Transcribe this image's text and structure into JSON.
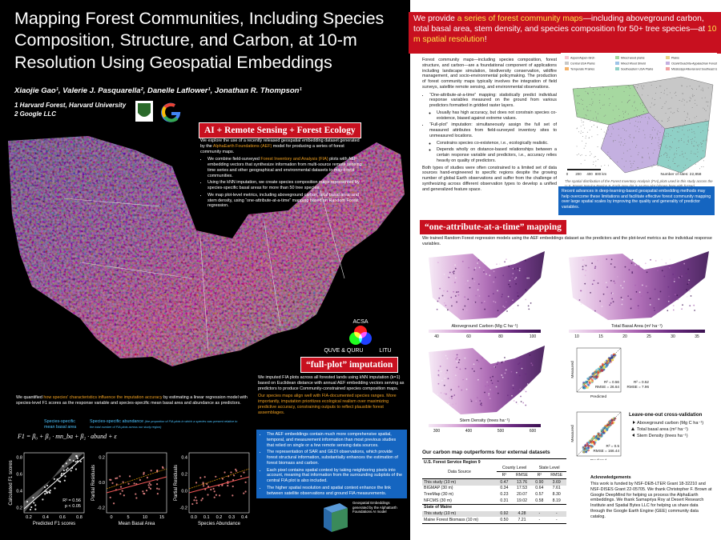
{
  "left": {
    "title": "Mapping Forest Communities, Including Species Composition, Structure, and Carbon, at 10-m Resolution Using Geospatial Embeddings",
    "authors": "Xiaojie Gao¹, Valerie J. Pasquarella², Danelle Laflower¹, Jonathan R. Thompson¹",
    "affiliations": [
      "1 Harvard Forest, Harvard University",
      "2 Google LLC"
    ],
    "ai": {
      "heading": "AI + Remote Sensing + Forest Ecology",
      "intro": [
        "We explore the use of a recently released geospatial embedding dataset generated by the ",
        "AlphaEarth Foundations (AEF)",
        " model for producing a series of forest community maps."
      ],
      "bullets": [
        [
          "We combine field-surveyed ",
          "Forest Inventory and Analysis (FIA)",
          " plots with AEF embedding vectors that synthesize information from multi-source remote sensing time series and other geographical and environmental datasets to map forest communities."
        ],
        [
          "Using the kNN imputation, we create species composition maps represented by species-specific basal areas for more than 50 tree species."
        ],
        [
          "We map plot-level metrics, including aboveground carbon, total basal area, and stem density, using “one-attribute-at-a-time” mapping based on Random Forest regression."
        ]
      ]
    },
    "rgb": [
      "ACSA",
      "QUVE & QURU",
      "LITU"
    ],
    "fullplot": {
      "heading": "“full-plot” imputation",
      "p1": "We imputed FIA plots across all forested lands using kNN imputation (k=1) based on Euclidean distance with annual AEF embedding vectors serving as predictors to produce Community-constrained species composition maps.",
      "p2": "Our species maps align well with FIA-documented species ranges. More importantly, imputation prioritizes ecological realism over maximizing predictive accuracy, constraining outputs to reflect plausible forest assemblages.",
      "box": [
        "The AEF embeddings contain much more comprehensive spatial, temporal, and measurement information than most previous studies that relied on single or a few remote sensing data sources.",
        "The representation of SAR and GEDI observations, which provide forest structural information, substantially enhances the estimation of forest biomass and carbon.",
        "Each pixel contains spatial context by taking neighboring pixels into account, meaning that information from the surrounding subplots of the central FIA plot is also included.",
        "The higher spatial resolution and spatial context enhance the link between satellite observations and ground FIA measurements."
      ],
      "caption": "Geospatial Embeddings generated by the AlphaEarth Foundations AI model"
    },
    "regression": {
      "text": [
        "We quantified ",
        "how species' characteristics influence the imputation accuracy",
        " by estimating a linear regression model with species-level F1 scores as the response variable and species-specific mean basal area and abundance as predictors."
      ],
      "label_ba": "Species-specific mean basal area",
      "label_ab": "Species-specific abundance",
      "label_ab_note": "(the proportion of FIA plots in which a species was present relative to the total number of FIA plots across our study region)",
      "formula": "F1 = β₀ + β₁ ∙ mn_ba + β₂ ∙ abund + ε",
      "plots": [
        {
          "ylabel": "Calculated F1 scores",
          "xlabel": "Predicted F1 scores",
          "xticks": [
            "0.2",
            "0.4",
            "0.6",
            "0.8"
          ],
          "yticks": [
            "0.2",
            "0.4",
            "0.6",
            "0.8"
          ],
          "stats": [
            "R² = 0.56",
            "p < 0.05"
          ]
        },
        {
          "ylabel": "Partial Residuals",
          "xlabel": "Mean Basal Area",
          "xticks": [
            "0",
            "5",
            "10",
            "15"
          ],
          "yticks": [
            "-0.2",
            "0.0",
            "0.2"
          ]
        },
        {
          "ylabel": "Partial Residuals",
          "xlabel": "Species Abundance",
          "xticks": [
            "0.0",
            "0.1",
            "0.2",
            "0.3",
            "0.4"
          ],
          "yticks": [
            "-0.2",
            "0.0",
            "0.2",
            "0.4"
          ]
        }
      ]
    }
  },
  "right": {
    "banner": [
      "We provide ",
      "a series of forest community maps",
      "—including aboveground carbon, total basal area, stem density, and species composition for 50+ tree species—at ",
      "10 m spatial resolution",
      "!"
    ],
    "intro": "Forest community maps—including species composition, forest structure, and carbon—are a foundational component of applications including landscape simulation, biodiversity conservation, wildfire management, and socio-environmental policymaking. The production of forest community maps typically involves the integration of field surveys, satellite remote sensing, and environmental observations.",
    "bullets": [
      {
        "text": "“One-attribute-at-a-time” mapping: statistically predict individual response variables measured on the ground from various predictors formatted in gridded raster layers.",
        "sub": [
          "Usually has high accuracy, but does not constrain species co-existence, biased against extreme values."
        ]
      },
      {
        "text": "“Full-plot” imputation: simultaneously assign the full set of measured attributes from field-surveyed inventory sites to unmeasured locations.",
        "sub": [
          "Constrains species co-existence, i.e., ecologically realistic.",
          "Depends wholly on distance-based relationships between a certain response variable and predictors, i.e., accuracy relies heavily on quality of predictors."
        ]
      }
    ],
    "para": "Both types of studies were often constrained to a limited set of data sources hand-engineered to specific regions despite the growing number of global Earth observations and suffer from the challenge of synthesizing across different observation types to develop a unified and generalized feature space.",
    "map": {
      "legend": [
        "Aspen/Aspen-birch",
        "Mixed wood plains",
        "Plains",
        "Central USA Plains",
        "Mixed Wood Shield",
        "Ozark/Ouachita-Appalachian Forests",
        "Temperate Prairies",
        "Southeastern USA Plains",
        "Mississippi Alluvial and Southeast USA Coastal Plains"
      ],
      "scale": [
        "0",
        "200",
        "400",
        "800 km"
      ],
      "sites": "Number of sites: 22,858",
      "caption": "The spatial distribution of the Forest Inventory Analysis (FIA) plots used in this study across the U.S. Forest Service Region 9. Each grey dot is an FIA plot (shown here with fuzzed coordinates). An illustration of the FIA plot layout is also shown in the central inset. The colored polygons represent ecoregions defined by the Ecological Regions of North America (Level II). Black lines in the map show state boundaries."
    },
    "box": "Recent advances in deep-learning-based geospatial embedding methods may help overcome these limitations and facilitate effective forest community mapping over large spatial scales by improving the quality and generality of predictor variables.",
    "oneattr": {
      "heading": "“one-attribute-at-a-time” mapping",
      "text": "We trained Random Forest regression models using the AEF embeddings dataset as the predictors and the plot-level metrics as the individual response variables.",
      "maps": [
        {
          "label": "Aboveground Carbon (Mg C ha⁻¹)",
          "ticks": [
            "40",
            "60",
            "80",
            "100"
          ]
        },
        {
          "label": "Total Basal Area (m² ha⁻¹)",
          "ticks": [
            "10",
            "15",
            "20",
            "25",
            "30",
            "35"
          ]
        },
        {
          "label": "Stem Density (trees ha⁻¹)",
          "ticks": [
            "300",
            "400",
            "500",
            "600"
          ]
        }
      ],
      "scatter": [
        {
          "ylabel": "Measured",
          "xlabel": "Predicted",
          "stats": [
            "R² = 0.56",
            "RMSE = 26.64"
          ],
          "stats2": [
            "R² = 0.52",
            "RMSE = 7.96"
          ]
        },
        {
          "ylabel": "Measured",
          "xlabel": "Predicted",
          "stats": [
            "R² = 0.5",
            "RMSE = 166.44"
          ]
        }
      ],
      "loo": {
        "title": "Leave-one-out cross-validation",
        "items": [
          "Aboveground carbon (Mg C ha⁻¹)",
          "Total basal area (m² ha⁻¹)",
          "Stem Density (trees ha⁻¹)"
        ]
      }
    },
    "table": {
      "title": "Our carbon map outperforms four external datasets",
      "region": "U.S. Forest Service Region 9",
      "head": [
        "Data Source",
        "County Level",
        "State Level"
      ],
      "subhead": [
        "R²",
        "RMSE",
        "R²",
        "RMSE"
      ],
      "rows": [
        [
          "This study (10 m)",
          "0.47",
          "13.76",
          "0.90",
          "3.69"
        ],
        [
          "BIGMAP (30 m)",
          "0.34",
          "17.53",
          "0.64",
          "7.61"
        ],
        [
          "TreeMap (30 m)",
          "0.23",
          "20.07",
          "0.57",
          "8.30"
        ],
        [
          "NFCMS (30 m)",
          "0.31",
          "19.02",
          "0.58",
          "8.19"
        ]
      ],
      "section": "State of Maine",
      "rows2": [
        [
          "This study (10 m)",
          "0.92",
          "4.28",
          "-",
          "-"
        ],
        [
          "Maine Forest Biomass (10 m)",
          "0.50",
          "7.21",
          "-",
          "-"
        ]
      ]
    },
    "ack": {
      "title": "Acknowledgements",
      "text": "This work is funded by NSF-DEB-LTER Grant 18-32210 and NSF-DISES Grant 22-05705. We thank Christopher F. Brown at Google DeepMind for helping us process the AlphaEarth embeddings. We thank Samapriya Roy at Desert Research Institute and Spatial Bytes LLC for helping us share data through the Google Earth Engine (GEE) community data catalog."
    }
  }
}
